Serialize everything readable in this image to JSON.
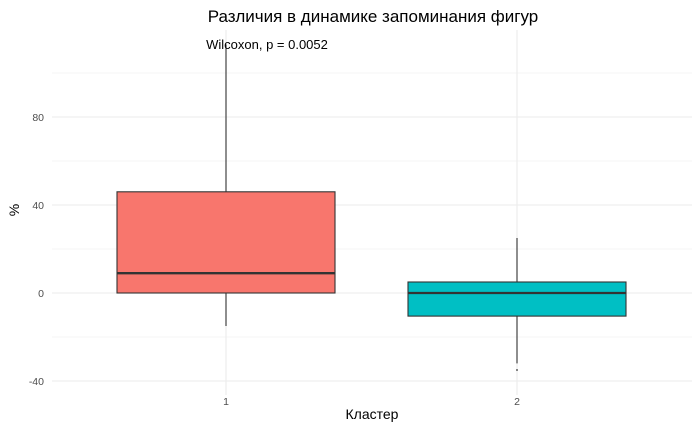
{
  "chart_data": {
    "type": "box",
    "title": "Различия в динамике запоминания фигур",
    "xlabel": "Кластер",
    "ylabel": "%",
    "categories": [
      "1",
      "2"
    ],
    "annotation": "Wilcoxon, p = 0.0052",
    "ylim": [
      -45,
      118
    ],
    "yticks": [
      -40,
      0,
      40,
      80
    ],
    "yminor": [
      -20,
      20,
      60,
      100
    ],
    "grid": true,
    "legend": null,
    "series": [
      {
        "name": "1",
        "color": "#F8766D",
        "whisker_high": 113,
        "q3": 46,
        "median": 9,
        "q1": 0,
        "whisker_low": -15,
        "outliers": []
      },
      {
        "name": "2",
        "color": "#00BFC4",
        "whisker_high": 25,
        "q3": 5,
        "median": 0,
        "q1": -10.5,
        "whisker_low": -32,
        "outliers": [
          -35
        ]
      }
    ]
  }
}
